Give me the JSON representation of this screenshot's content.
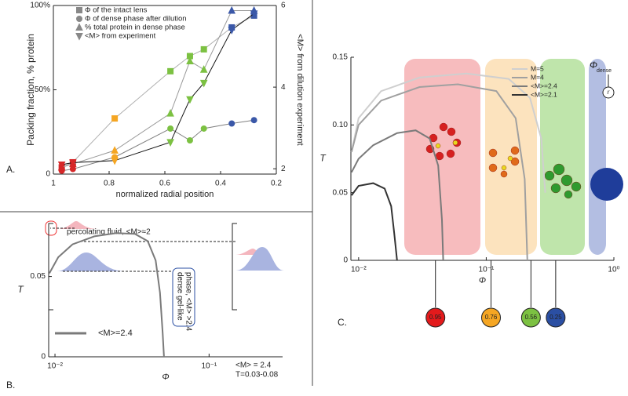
{
  "chart_data": [
    {
      "type": "line",
      "panel_label": "A.",
      "x_label": "normalized radial position",
      "y_label": "Packing fraction, % protein",
      "y2_label": "<M> from dilution experiment",
      "x": [
        0.97,
        0.93,
        0.78,
        0.58,
        0.51,
        0.46,
        0.36,
        0.28
      ],
      "marker_colors": [
        "#d62728",
        "#d62728",
        "#f5a623",
        "#7cc142",
        "#7cc142",
        "#7cc142",
        "#3b58a8",
        "#3b58a8"
      ],
      "series": [
        {
          "name": "Φ of the intact lens",
          "color": "#b0b0b0",
          "marker": "square",
          "values": [
            4,
            7,
            33,
            61,
            70,
            74,
            87,
            94
          ]
        },
        {
          "name": "Φ of dense phase after dilution",
          "color": "#808080",
          "marker": "circle",
          "values": [
            2,
            3,
            10,
            27,
            20,
            27,
            30,
            32
          ]
        },
        {
          "name": "% total protein in dense phase",
          "color": "#9a9a9a",
          "marker": "triangle",
          "values": [
            4,
            6,
            14,
            36,
            67,
            62,
            97,
            97
          ]
        },
        {
          "name": "<M> from experiment",
          "color": "#111111",
          "marker": "triangle-down",
          "axis": "y2",
          "values": [
            2.1,
            2.15,
            2.2,
            2.65,
            3.7,
            4.1,
            5.4,
            5.8
          ]
        }
      ],
      "xlim": [
        1,
        0.2
      ],
      "xticks": [
        1,
        0.8,
        0.6,
        0.4,
        0.2
      ],
      "ylim": [
        0,
        100
      ],
      "yticks": [
        0,
        {
          "value": 50,
          "label": "50%"
        },
        {
          "value": 100,
          "label": "100%"
        }
      ],
      "y2lim": [
        1.87,
        6
      ],
      "y2ticks": [
        2,
        4,
        6
      ],
      "frame": true
    },
    {
      "type": "line",
      "panel_label": "B.",
      "x_label": "Φ",
      "y_label": "T",
      "xscale": "log",
      "series": [
        {
          "name": "<M>=2.4",
          "color": "#7a7a7a",
          "x": [
            0.0092,
            0.0105,
            0.013,
            0.018,
            0.025,
            0.033,
            0.04,
            0.045,
            0.048,
            0.05,
            0.051
          ],
          "values": [
            0.052,
            0.062,
            0.07,
            0.075,
            0.077,
            0.0765,
            0.072,
            0.06,
            0.04,
            0.015,
            0
          ]
        }
      ],
      "xlim": [
        0.0091,
        0.3
      ],
      "xticks": [
        {
          "value": 0.01,
          "label": "10⁻²"
        },
        {
          "value": 0.1,
          "label": "10⁻¹"
        }
      ],
      "ylim": [
        0,
        0.083
      ],
      "yticks": [
        0,
        0.05
      ],
      "annotations": [
        "percolating fluid, <M>≈2",
        "dense gel-like",
        "phase, <M> >2.4",
        "<M> = 2.4",
        "T=0.03-0.08"
      ]
    },
    {
      "type": "line",
      "panel_label": "C.",
      "x_label": "Φ",
      "y_label": "T",
      "xscale": "log",
      "series": [
        {
          "name": "M=5",
          "color": "#cfcfcf",
          "x": [
            0.0088,
            0.01,
            0.015,
            0.03,
            0.07,
            0.15,
            0.22,
            0.27,
            0.29
          ],
          "values": [
            0.08,
            0.105,
            0.125,
            0.135,
            0.138,
            0.134,
            0.12,
            0.09,
            0.05
          ]
        },
        {
          "name": "M=4",
          "color": "#a0a0a0",
          "x": [
            0.0088,
            0.01,
            0.015,
            0.03,
            0.06,
            0.12,
            0.17,
            0.2,
            0.21
          ],
          "values": [
            0.08,
            0.1,
            0.118,
            0.128,
            0.13,
            0.125,
            0.105,
            0.06,
            0
          ]
        },
        {
          "name": "<M>=2.4",
          "color": "#7a7a7a",
          "x": [
            0.0088,
            0.01,
            0.013,
            0.02,
            0.028,
            0.036,
            0.042,
            0.045,
            0.046
          ],
          "values": [
            0.065,
            0.075,
            0.085,
            0.094,
            0.096,
            0.09,
            0.07,
            0.03,
            0
          ]
        },
        {
          "name": "<M>=2.1",
          "color": "#333333",
          "x": [
            0.0088,
            0.01,
            0.013,
            0.016,
            0.018,
            0.019,
            0.02
          ],
          "values": [
            0.048,
            0.055,
            0.057,
            0.053,
            0.04,
            0.02,
            0
          ]
        }
      ],
      "xlim": [
        0.0087,
        1
      ],
      "xticks": [
        {
          "value": 0.01,
          "label": "10⁻²"
        },
        {
          "value": 0.1,
          "label": "10⁻¹"
        },
        {
          "value": 1,
          "label": "10⁰"
        }
      ],
      "ylim": [
        0,
        0.15
      ],
      "yticks": [
        0,
        0.05,
        {
          "value": 0.1,
          "label": "0.10"
        },
        0.15
      ],
      "regions": [
        {
          "label": "0.95",
          "phi": 0.04,
          "color": "#e31a1c"
        },
        {
          "label": "0.76",
          "phi": 0.109,
          "color": "#f5a623"
        },
        {
          "label": "0.56",
          "phi": 0.224,
          "color": "#7cc142"
        },
        {
          "label": "0.25",
          "phi": 0.35,
          "color": "#2b4fa3"
        }
      ],
      "inset_symbol": "Φ",
      "inset_subscript": "dense",
      "inset_radius": "r"
    }
  ]
}
